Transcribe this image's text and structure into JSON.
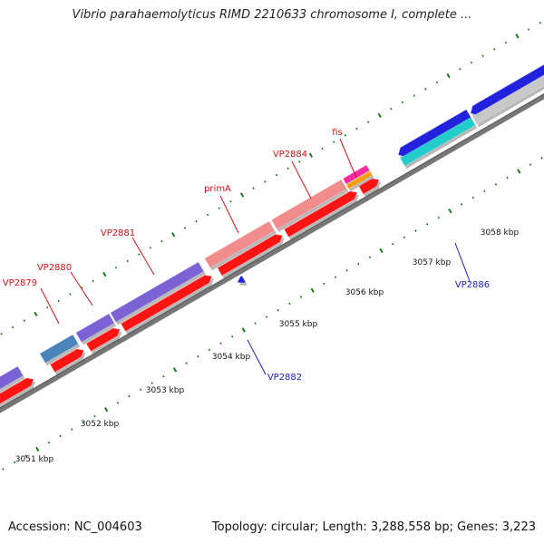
{
  "title": "Vibrio parahaemolyticus RIMD 2210633 chromosome I, complete ...",
  "footer": {
    "accession": "Accession: NC_004603",
    "stats": "Topology: circular; Length: 3,288,558 bp; Genes: 3,223"
  },
  "colors": {
    "backbone": "#777777",
    "tick": "#1a7a1a",
    "forward_label": "#d21414",
    "reverse_label": "#1a1acc"
  },
  "scale_labels": [
    "3051 kbp",
    "3052 kbp",
    "3053 kbp",
    "3054 kbp",
    "3055 kbp",
    "3056 kbp",
    "3057 kbp",
    "3058 kbp"
  ],
  "gene_labels": [
    {
      "text": "VP2879",
      "color": "#d21414"
    },
    {
      "text": "VP2880",
      "color": "#d21414"
    },
    {
      "text": "VP2881",
      "color": "#d21414"
    },
    {
      "text": "primA",
      "color": "#d21414"
    },
    {
      "text": "VP2884",
      "color": "#d21414"
    },
    {
      "text": "fis",
      "color": "#d21414"
    },
    {
      "text": "VP2882",
      "color": "#1a1acc"
    },
    {
      "text": "VP2886",
      "color": "#1a1acc"
    }
  ]
}
